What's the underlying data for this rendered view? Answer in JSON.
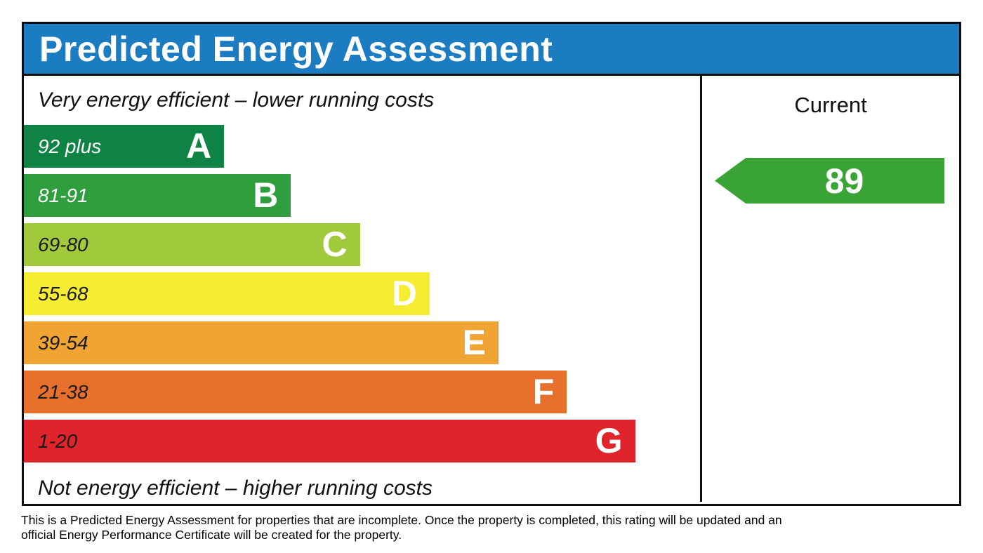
{
  "header": {
    "title": "Predicted Energy Assessment",
    "bg_color": "#1c7cc2"
  },
  "chart": {
    "top_caption": "Very energy efficient – lower running costs",
    "bottom_caption": "Not energy efficient – higher running costs",
    "bands": [
      {
        "letter": "A",
        "range": "92 plus",
        "color": "#0f8343",
        "label_color": "#ffffff",
        "width_pct": 29.6
      },
      {
        "letter": "B",
        "range": "81-91",
        "color": "#2e9f3c",
        "label_color": "#ffffff",
        "width_pct": 39.5
      },
      {
        "letter": "C",
        "range": "69-80",
        "color": "#a0c93c",
        "label_color": "#1a1a1a",
        "width_pct": 49.7
      },
      {
        "letter": "D",
        "range": "55-68",
        "color": "#f6ec31",
        "label_color": "#1a1a1a",
        "width_pct": 60.0
      },
      {
        "letter": "E",
        "range": "39-54",
        "color": "#f0a433",
        "label_color": "#1a1a1a",
        "width_pct": 70.2
      },
      {
        "letter": "F",
        "range": "21-38",
        "color": "#e7712c",
        "label_color": "#1a1a1a",
        "width_pct": 80.3
      },
      {
        "letter": "G",
        "range": "1-20",
        "color": "#e0242b",
        "label_color": "#1a1a1a",
        "width_pct": 90.4
      }
    ]
  },
  "current_panel": {
    "title": "Current",
    "rating_value": "89",
    "band_letter": "B",
    "arrow_color": "#3aa336"
  },
  "footer": {
    "lines": [
      "This is a Predicted Energy Assessment for properties that are incomplete. Once the property is completed, this rating will be updated and an",
      "official Energy Performance Certificate will be created for the property."
    ]
  },
  "chart_data": {
    "type": "bar",
    "title": "Predicted Energy Assessment",
    "orientation": "horizontal",
    "categories": [
      "A",
      "B",
      "C",
      "D",
      "E",
      "F",
      "G"
    ],
    "band_ranges": [
      "92 plus",
      "81-91",
      "69-80",
      "55-68",
      "39-54",
      "21-38",
      "1-20"
    ],
    "values": [
      29.6,
      39.5,
      49.7,
      60.0,
      70.2,
      80.3,
      90.4
    ],
    "bar_colors": [
      "#0f8343",
      "#2e9f3c",
      "#a0c93c",
      "#f6ec31",
      "#f0a433",
      "#e7712c",
      "#e0242b"
    ],
    "annotations": [
      "Very energy efficient – lower running costs",
      "Not energy efficient – higher running costs"
    ],
    "current_rating": 89,
    "current_band": "B",
    "legend_position": "none",
    "grid": false
  }
}
